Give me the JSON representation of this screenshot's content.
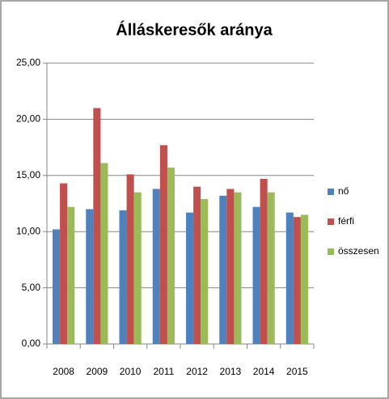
{
  "chart_data": {
    "type": "bar",
    "title": "Álláskeresők aránya",
    "categories": [
      "2008",
      "2009",
      "2010",
      "2011",
      "2012",
      "2013",
      "2014",
      "2015"
    ],
    "series": [
      {
        "name": "nő",
        "color": "#4f81bd",
        "values": [
          10.2,
          12.0,
          11.9,
          13.8,
          11.7,
          13.2,
          12.2,
          11.7
        ]
      },
      {
        "name": "férfi",
        "color": "#c0504d",
        "values": [
          14.3,
          21.0,
          15.1,
          17.7,
          14.0,
          13.8,
          14.7,
          11.3
        ]
      },
      {
        "name": "összesen",
        "color": "#9bbb59",
        "values": [
          12.2,
          16.1,
          13.5,
          15.7,
          12.9,
          13.5,
          13.5,
          11.5
        ]
      }
    ],
    "ylim": [
      0,
      25
    ],
    "yticks": [
      {
        "value": 0,
        "label": "0,00"
      },
      {
        "value": 5,
        "label": "5,00"
      },
      {
        "value": 10,
        "label": "10,00"
      },
      {
        "value": 15,
        "label": "15,00"
      },
      {
        "value": 20,
        "label": "20,00"
      },
      {
        "value": 25,
        "label": "25,00"
      }
    ],
    "grid": true,
    "legend": "right"
  }
}
